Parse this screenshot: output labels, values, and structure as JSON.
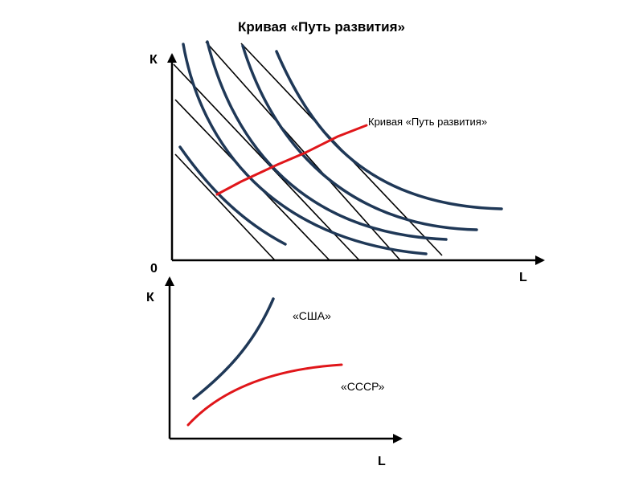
{
  "title": "Кривая «Путь развития»",
  "top_chart": {
    "axis_y_label": "К",
    "axis_x_label": "L",
    "origin_label": "0",
    "path_label": "Кривая «Путь развития»",
    "isoquant_count": 5,
    "isocost_count": 5,
    "colors": {
      "isoquant": "#1f3857",
      "path": "#e0161a",
      "axis": "#000000"
    }
  },
  "bottom_chart": {
    "axis_y_label": "К",
    "axis_x_label": "L",
    "usa_label": "«США»",
    "ussr_label": "«СССР»",
    "colors": {
      "usa": "#1f3857",
      "ussr": "#e0161a"
    }
  }
}
